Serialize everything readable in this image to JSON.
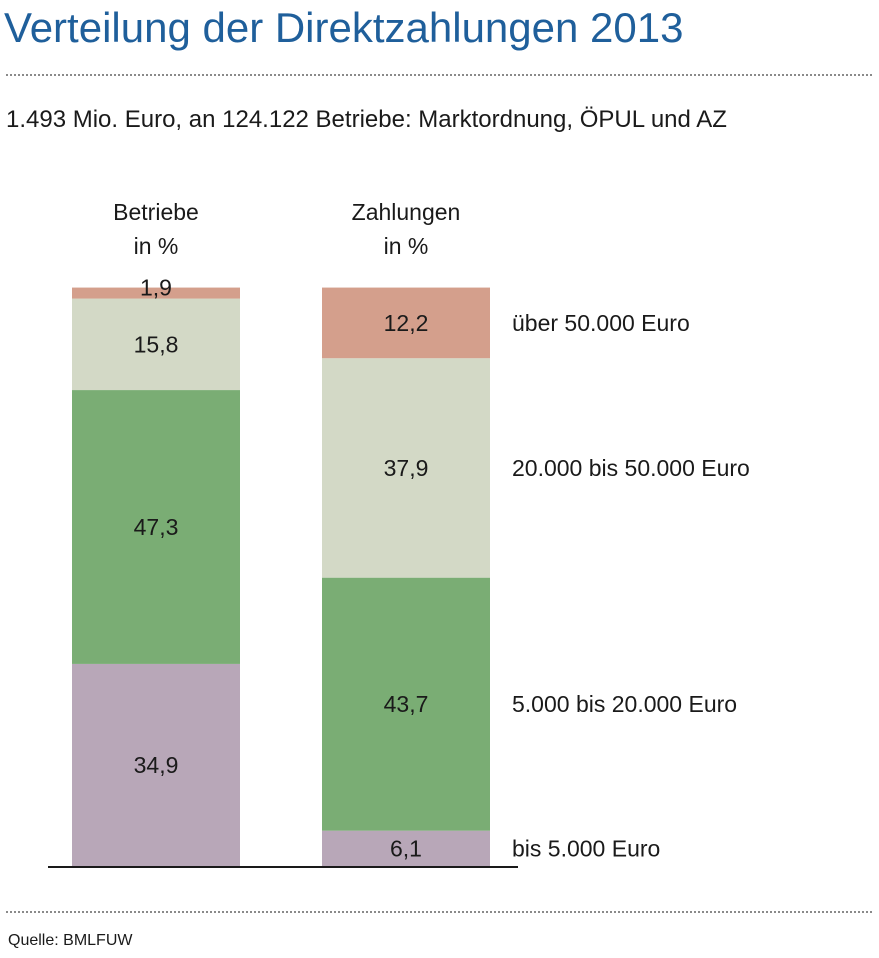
{
  "title": "Verteilung der Direktzahlungen 2013",
  "subtitle": "1.493 Mio. Euro, an 124.122 Betriebe: Marktordnung, ÖPUL und AZ",
  "source": "Quelle: BMLFUW",
  "colors": {
    "title": "#1f5f9b",
    "bis_5000": "#b8a7b8",
    "5000_20000": "#7aad74",
    "20000_50000": "#d3d9c6",
    "ueber_50000": "#d49f8c"
  },
  "chart_data": {
    "type": "bar",
    "stacked": true,
    "categories": [
      "Betriebe\nin %",
      "Zahlungen\nin %"
    ],
    "category_lines": [
      [
        "Betriebe",
        "in %"
      ],
      [
        "Zahlungen",
        "in %"
      ]
    ],
    "series": [
      {
        "name": "bis 5.000 Euro",
        "color": "#b8a7b8",
        "values": [
          34.9,
          6.1
        ],
        "labels": [
          "34,9",
          "6,1"
        ]
      },
      {
        "name": "5.000 bis 20.000 Euro",
        "color": "#7aad74",
        "values": [
          47.3,
          43.7
        ],
        "labels": [
          "47,3",
          "43,7"
        ]
      },
      {
        "name": "20.000 bis 50.000 Euro",
        "color": "#d3d9c6",
        "values": [
          15.8,
          37.9
        ],
        "labels": [
          "15,8",
          "37,9"
        ]
      },
      {
        "name": "über 50.000 Euro",
        "color": "#d49f8c",
        "values": [
          1.9,
          12.2
        ],
        "labels": [
          "1,9",
          "12,2"
        ]
      }
    ],
    "ylim": [
      0,
      100
    ],
    "grid": false,
    "legend": "right of second bar, labels beside segments"
  }
}
